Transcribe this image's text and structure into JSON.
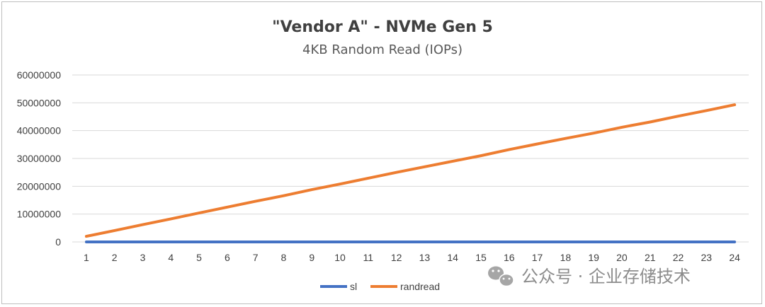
{
  "chart_data": {
    "type": "line",
    "title": "\"Vendor A\" - NVMe Gen 5",
    "subtitle": "4KB Random  Read (IOPs)",
    "x": [
      1,
      2,
      3,
      4,
      5,
      6,
      7,
      8,
      9,
      10,
      11,
      12,
      13,
      14,
      15,
      16,
      17,
      18,
      19,
      20,
      21,
      22,
      23,
      24
    ],
    "ylim": [
      0,
      60000000
    ],
    "yticks": [
      0,
      10000000,
      20000000,
      30000000,
      40000000,
      50000000,
      60000000
    ],
    "grid": true,
    "legend_position": "bottom",
    "series": [
      {
        "name": "sl",
        "color": "#4472c4",
        "values": [
          0,
          0,
          0,
          0,
          0,
          0,
          0,
          0,
          0,
          0,
          0,
          0,
          0,
          0,
          0,
          0,
          0,
          0,
          0,
          0,
          0,
          0,
          0,
          0
        ]
      },
      {
        "name": "randread",
        "color": "#ed7d31",
        "values": [
          2000000,
          4100000,
          6200000,
          8300000,
          10400000,
          12500000,
          14600000,
          16600000,
          18800000,
          20800000,
          22900000,
          25000000,
          27000000,
          29000000,
          31000000,
          33200000,
          35200000,
          37200000,
          39100000,
          41200000,
          43100000,
          45200000,
          47200000,
          49300000
        ]
      }
    ]
  },
  "watermark": {
    "icon": "wechat-icon",
    "text": "公众号 · 企业存储技术"
  }
}
